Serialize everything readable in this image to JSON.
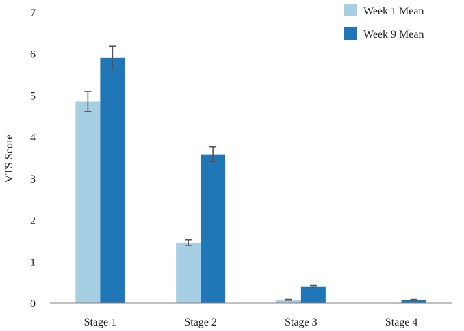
{
  "chart_data": {
    "type": "bar",
    "title": "",
    "xlabel": "",
    "ylabel": "VTS Score",
    "ylim": [
      0,
      7
    ],
    "yticks": [
      0,
      1,
      2,
      3,
      4,
      5,
      6,
      7
    ],
    "grid": false,
    "legend_position": "top-right",
    "categories": [
      "Stage 1",
      "Stage 2",
      "Stage 3",
      "Stage 4"
    ],
    "series": [
      {
        "name": "Week 1 Mean",
        "color": "#a6cfe3",
        "values": [
          4.85,
          1.45,
          0.08,
          0
        ],
        "errors": [
          0.24,
          0.07,
          0.01,
          0
        ]
      },
      {
        "name": "Week 9 Mean",
        "color": "#1f77b8",
        "values": [
          5.9,
          3.58,
          0.4,
          0.08
        ],
        "errors": [
          0.29,
          0.18,
          0.02,
          0.01
        ]
      }
    ]
  }
}
